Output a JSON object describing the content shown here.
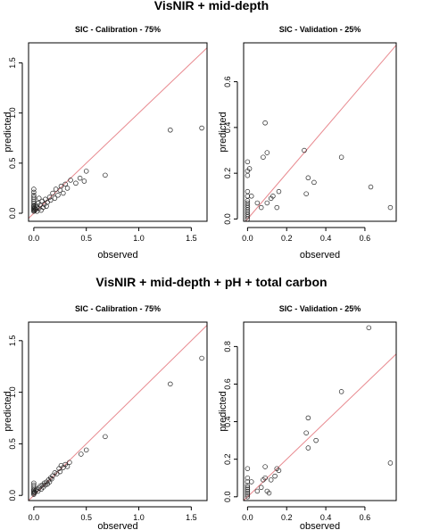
{
  "sections": [
    {
      "title": "VisNIR + mid-depth"
    },
    {
      "title": "VisNIR + mid-depth  + pH + total carbon"
    }
  ],
  "chart_data": [
    {
      "type": "scatter",
      "title": "SIC - Calibration - 75%",
      "xlabel": "observed",
      "ylabel": "predicted",
      "xlim": [
        -0.05,
        1.65
      ],
      "ylim": [
        -0.08,
        1.7
      ],
      "xticks": [
        0.0,
        0.5,
        1.0,
        1.5
      ],
      "yticks": [
        0.0,
        0.5,
        1.0,
        1.5
      ],
      "reference_line": "y = x",
      "points": [
        [
          0,
          0.02
        ],
        [
          0,
          0.03
        ],
        [
          0,
          0.04
        ],
        [
          0,
          0.05
        ],
        [
          0,
          0.06
        ],
        [
          0,
          0.07
        ],
        [
          0,
          0.08
        ],
        [
          0,
          0.1
        ],
        [
          0,
          0.12
        ],
        [
          0,
          0.14
        ],
        [
          0,
          0.16
        ],
        [
          0,
          0.18
        ],
        [
          0,
          0.21
        ],
        [
          0,
          0.24
        ],
        [
          0.01,
          0.03
        ],
        [
          0.01,
          0.05
        ],
        [
          0.02,
          0.04
        ],
        [
          0.02,
          0.08
        ],
        [
          0.03,
          0.02
        ],
        [
          0.03,
          0.06
        ],
        [
          0.04,
          0.1
        ],
        [
          0.05,
          0.05
        ],
        [
          0.05,
          0.15
        ],
        [
          0.06,
          0.08
        ],
        [
          0.07,
          0.03
        ],
        [
          0.08,
          0.12
        ],
        [
          0.09,
          0.06
        ],
        [
          0.1,
          0.09
        ],
        [
          0.11,
          0.14
        ],
        [
          0.12,
          0.07
        ],
        [
          0.13,
          0.11
        ],
        [
          0.15,
          0.16
        ],
        [
          0.16,
          0.13
        ],
        [
          0.18,
          0.2
        ],
        [
          0.2,
          0.15
        ],
        [
          0.21,
          0.24
        ],
        [
          0.23,
          0.18
        ],
        [
          0.25,
          0.23
        ],
        [
          0.26,
          0.27
        ],
        [
          0.28,
          0.2
        ],
        [
          0.3,
          0.29
        ],
        [
          0.32,
          0.25
        ],
        [
          0.35,
          0.33
        ],
        [
          0.4,
          0.3
        ],
        [
          0.44,
          0.35
        ],
        [
          0.48,
          0.32
        ],
        [
          0.5,
          0.42
        ],
        [
          0.68,
          0.38
        ],
        [
          1.3,
          0.83
        ],
        [
          1.6,
          0.85
        ]
      ]
    },
    {
      "type": "scatter",
      "title": "SIC - Validation - 25%",
      "xlabel": "observed",
      "ylabel": "predicted",
      "xlim": [
        -0.02,
        0.76
      ],
      "ylim": [
        -0.01,
        0.77
      ],
      "xticks": [
        0.0,
        0.2,
        0.4,
        0.6
      ],
      "yticks": [
        0.0,
        0.2,
        0.4,
        0.6
      ],
      "reference_line": "y = x",
      "points": [
        [
          0,
          0.0
        ],
        [
          0,
          0.01
        ],
        [
          0,
          0.02
        ],
        [
          0,
          0.03
        ],
        [
          0,
          0.04
        ],
        [
          0,
          0.05
        ],
        [
          0,
          0.06
        ],
        [
          0,
          0.07
        ],
        [
          0,
          0.08
        ],
        [
          0,
          0.1
        ],
        [
          0,
          0.12
        ],
        [
          0,
          0.19
        ],
        [
          0,
          0.21
        ],
        [
          0,
          0.25
        ],
        [
          0.01,
          0.22
        ],
        [
          0.02,
          0.1
        ],
        [
          0.05,
          0.07
        ],
        [
          0.07,
          0.05
        ],
        [
          0.08,
          0.27
        ],
        [
          0.09,
          0.42
        ],
        [
          0.1,
          0.07
        ],
        [
          0.1,
          0.29
        ],
        [
          0.12,
          0.09
        ],
        [
          0.13,
          0.1
        ],
        [
          0.15,
          0.05
        ],
        [
          0.16,
          0.12
        ],
        [
          0.29,
          0.3
        ],
        [
          0.3,
          0.11
        ],
        [
          0.31,
          0.18
        ],
        [
          0.34,
          0.16
        ],
        [
          0.48,
          0.27
        ],
        [
          0.63,
          0.14
        ],
        [
          0.73,
          0.05
        ]
      ]
    },
    {
      "type": "scatter",
      "title": "SIC - Calibration - 75%",
      "xlabel": "observed",
      "ylabel": "predicted",
      "xlim": [
        -0.05,
        1.65
      ],
      "ylim": [
        -0.05,
        1.68
      ],
      "xticks": [
        0.0,
        0.5,
        1.0,
        1.5
      ],
      "yticks": [
        0.0,
        0.5,
        1.0,
        1.5
      ],
      "reference_line": "y = x",
      "points": [
        [
          0,
          0.01
        ],
        [
          0,
          0.02
        ],
        [
          0,
          0.03
        ],
        [
          0,
          0.04
        ],
        [
          0,
          0.05
        ],
        [
          0,
          0.06
        ],
        [
          0,
          0.08
        ],
        [
          0,
          0.1
        ],
        [
          0,
          0.12
        ],
        [
          0.01,
          0.03
        ],
        [
          0.02,
          0.05
        ],
        [
          0.03,
          0.06
        ],
        [
          0.04,
          0.04
        ],
        [
          0.05,
          0.07
        ],
        [
          0.06,
          0.09
        ],
        [
          0.07,
          0.06
        ],
        [
          0.08,
          0.1
        ],
        [
          0.09,
          0.08
        ],
        [
          0.1,
          0.12
        ],
        [
          0.11,
          0.1
        ],
        [
          0.12,
          0.13
        ],
        [
          0.13,
          0.11
        ],
        [
          0.14,
          0.15
        ],
        [
          0.15,
          0.13
        ],
        [
          0.16,
          0.17
        ],
        [
          0.17,
          0.16
        ],
        [
          0.18,
          0.19
        ],
        [
          0.2,
          0.22
        ],
        [
          0.22,
          0.21
        ],
        [
          0.24,
          0.26
        ],
        [
          0.25,
          0.23
        ],
        [
          0.26,
          0.29
        ],
        [
          0.28,
          0.27
        ],
        [
          0.3,
          0.3
        ],
        [
          0.32,
          0.28
        ],
        [
          0.34,
          0.32
        ],
        [
          0.45,
          0.4
        ],
        [
          0.5,
          0.44
        ],
        [
          0.68,
          0.57
        ],
        [
          1.3,
          1.08
        ],
        [
          1.6,
          1.33
        ]
      ]
    },
    {
      "type": "scatter",
      "title": "SIC - Validation - 25%",
      "xlabel": "observed",
      "ylabel": "predicted",
      "xlim": [
        -0.02,
        0.76
      ],
      "ylim": [
        -0.02,
        0.93
      ],
      "xticks": [
        0.0,
        0.2,
        0.4,
        0.6
      ],
      "yticks": [
        0.0,
        0.2,
        0.4,
        0.6,
        0.8
      ],
      "reference_line": "y = x",
      "points": [
        [
          0,
          0.0
        ],
        [
          0,
          0.01
        ],
        [
          0,
          0.02
        ],
        [
          0,
          0.03
        ],
        [
          0,
          0.04
        ],
        [
          0,
          0.05
        ],
        [
          0,
          0.06
        ],
        [
          0,
          0.08
        ],
        [
          0,
          0.1
        ],
        [
          0,
          0.15
        ],
        [
          0.02,
          0.08
        ],
        [
          0.05,
          0.03
        ],
        [
          0.07,
          0.05
        ],
        [
          0.08,
          0.09
        ],
        [
          0.09,
          0.1
        ],
        [
          0.09,
          0.16
        ],
        [
          0.1,
          0.03
        ],
        [
          0.11,
          0.02
        ],
        [
          0.12,
          0.09
        ],
        [
          0.14,
          0.11
        ],
        [
          0.15,
          0.15
        ],
        [
          0.16,
          0.14
        ],
        [
          0.3,
          0.34
        ],
        [
          0.31,
          0.26
        ],
        [
          0.31,
          0.42
        ],
        [
          0.35,
          0.3
        ],
        [
          0.48,
          0.56
        ],
        [
          0.62,
          0.9
        ],
        [
          0.73,
          0.18
        ]
      ]
    }
  ]
}
